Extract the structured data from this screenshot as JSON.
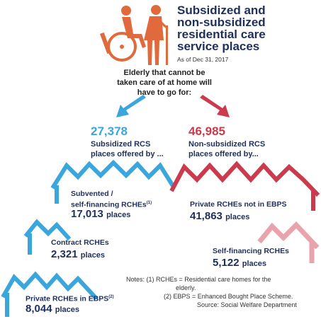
{
  "header": {
    "title_line1": "Subsidized and",
    "title_line2": "non-subsidized",
    "title_line3": "residential care",
    "title_line4": "service places",
    "as_of": "As of Dec 31, 2017"
  },
  "lead": {
    "line1": "Elderly that cannot be",
    "line2": "taken care of at home will",
    "line3": "have to go for:"
  },
  "left": {
    "total": "27,378",
    "label_line1": "Subsidized RCS",
    "label_line2": "places offered by ..."
  },
  "right": {
    "total": "46,985",
    "label_line1": "Non-subsidized RCS",
    "label_line2": "places offered by..."
  },
  "items": [
    {
      "name_line1": "Subvented /",
      "name_line2": "self-financing RCHEs",
      "sup": "(1)",
      "value": "17,013",
      "unit": "places"
    },
    {
      "name_line1": "Contract RCHEs",
      "value": "2,321",
      "unit": "places"
    },
    {
      "name_line1": "Private RCHEs in EBPS",
      "sup": "(2)",
      "value": "8,044",
      "unit": "places"
    },
    {
      "name_line1": "Private RCHEs not in EBPS",
      "value": "41,863",
      "unit": "places"
    },
    {
      "name_line1": "Self-financing RCHEs",
      "value": "5,122",
      "unit": "places"
    }
  ],
  "notes": {
    "label": "Notes:",
    "note1_a": "(1) RCHEs = Residential care homes for the",
    "note1_b": "elderly.",
    "note2": "(2) EBPS = Enhanced Bought Place Scheme.",
    "source": "Source: Social Welfare Department"
  },
  "colors": {
    "blue": "#3aa6db",
    "red": "#cc3a4e",
    "pink": "#e9a3ad",
    "orange": "#e06a3b",
    "navy": "#1f2f5c"
  },
  "icons": [
    "wheelchair-user-icon",
    "elderly-with-cane-icon",
    "arrow-down-left-icon",
    "arrow-down-right-icon",
    "house-roof-icon"
  ]
}
